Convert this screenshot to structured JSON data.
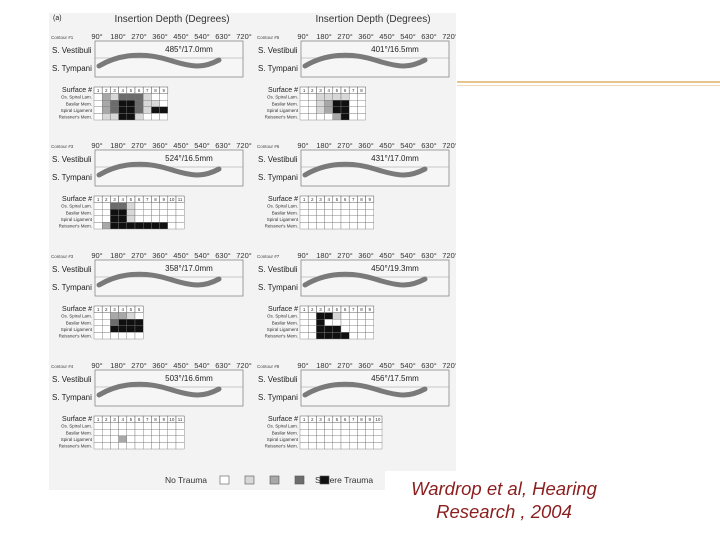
{
  "figure": {
    "panel_label": "(a)",
    "header": "Insertion Depth (Degrees)",
    "ticks": [
      "90°",
      "180°",
      "270°",
      "360°",
      "450°",
      "540°",
      "630°",
      "720°"
    ],
    "sv_label": "S. Vestibuli",
    "st_label": "S. Tympani",
    "surface_label": "Surface #",
    "row_labels": [
      "Os. Spiral Lam.",
      "Basilar Mem.",
      "Spiral Ligament",
      "Reissner's Mem."
    ],
    "panels": [
      {
        "contour": "Contour #1",
        "measure": "485°/17.0mm",
        "cells": 9,
        "grid": [
          [
            0,
            2,
            1,
            3,
            3,
            3,
            1,
            0,
            0
          ],
          [
            0,
            2,
            3,
            4,
            4,
            3,
            1,
            1,
            0
          ],
          [
            0,
            2,
            3,
            4,
            4,
            3,
            1,
            4,
            4
          ],
          [
            0,
            1,
            1,
            4,
            4,
            1,
            0,
            0,
            0
          ]
        ]
      },
      {
        "contour": "Contour #5",
        "measure": "401°/16.5mm",
        "cells": 8,
        "grid": [
          [
            0,
            0,
            1,
            1,
            1,
            1,
            0,
            0
          ],
          [
            0,
            0,
            1,
            2,
            4,
            4,
            0,
            0
          ],
          [
            0,
            0,
            1,
            2,
            4,
            4,
            0,
            0
          ],
          [
            0,
            0,
            0,
            0,
            2,
            4,
            0,
            0
          ]
        ]
      },
      {
        "contour": "Contour #3",
        "measure": "524°/16.5mm",
        "cells": 11,
        "grid": [
          [
            0,
            0,
            3,
            3,
            1,
            0,
            0,
            0,
            0,
            0,
            0
          ],
          [
            0,
            0,
            4,
            4,
            1,
            0,
            0,
            0,
            0,
            0,
            0
          ],
          [
            0,
            0,
            4,
            4,
            1,
            0,
            0,
            0,
            0,
            0,
            0
          ],
          [
            0,
            2,
            4,
            4,
            4,
            4,
            4,
            4,
            4,
            0,
            0
          ]
        ]
      },
      {
        "contour": "Contour #6",
        "measure": "431°/17.0mm",
        "cells": 9,
        "grid": [
          [
            0,
            0,
            0,
            0,
            0,
            0,
            0,
            0,
            0
          ],
          [
            0,
            0,
            0,
            0,
            0,
            0,
            0,
            0,
            0
          ],
          [
            0,
            0,
            0,
            0,
            0,
            0,
            0,
            0,
            0
          ],
          [
            0,
            0,
            0,
            0,
            0,
            0,
            0,
            0,
            0
          ]
        ]
      },
      {
        "contour": "Contour #3",
        "measure": "358°/17.0mm",
        "cells": 6,
        "grid": [
          [
            0,
            0,
            2,
            2,
            1,
            0
          ],
          [
            0,
            0,
            3,
            4,
            4,
            4
          ],
          [
            0,
            0,
            4,
            4,
            4,
            4
          ],
          [
            0,
            0,
            0,
            0,
            0,
            0
          ]
        ]
      },
      {
        "contour": "Contour #7",
        "measure": "450°/19.3mm",
        "cells": 9,
        "grid": [
          [
            0,
            0,
            4,
            4,
            1,
            0,
            0,
            0,
            0
          ],
          [
            0,
            0,
            4,
            0,
            0,
            0,
            0,
            0,
            0
          ],
          [
            0,
            0,
            4,
            4,
            4,
            0,
            0,
            0,
            0
          ],
          [
            0,
            0,
            4,
            4,
            4,
            4,
            0,
            0,
            0
          ]
        ]
      },
      {
        "contour": "Contour #4",
        "measure": "503°/16.6mm",
        "cells": 11,
        "grid": [
          [
            0,
            0,
            0,
            0,
            0,
            0,
            0,
            0,
            0,
            0,
            0
          ],
          [
            0,
            0,
            0,
            0,
            0,
            0,
            0,
            0,
            0,
            0,
            0
          ],
          [
            0,
            0,
            0,
            2,
            0,
            0,
            0,
            0,
            0,
            0,
            0
          ],
          [
            0,
            0,
            0,
            0,
            0,
            0,
            0,
            0,
            0,
            0,
            0
          ]
        ]
      },
      {
        "contour": "Contour #8",
        "measure": "456°/17.5mm",
        "cells": 10,
        "grid": [
          [
            0,
            0,
            0,
            0,
            0,
            0,
            0,
            0,
            0,
            0
          ],
          [
            0,
            0,
            0,
            0,
            0,
            0,
            0,
            0,
            0,
            0
          ],
          [
            0,
            0,
            0,
            0,
            0,
            0,
            0,
            0,
            0,
            0
          ],
          [
            0,
            0,
            0,
            0,
            0,
            0,
            0,
            0,
            0,
            0
          ]
        ]
      }
    ],
    "legend_left": "No Trauma",
    "legend_right": "Severe Trauma",
    "legend_shades": [
      "#ffffff",
      "#d8d8d8",
      "#a8a8a8",
      "#6c6c6c",
      "#101010"
    ]
  },
  "caption": {
    "line1": "Wardrop et al, Hearing",
    "line2": "Research , 2004",
    "color": "#8b1e1e"
  }
}
